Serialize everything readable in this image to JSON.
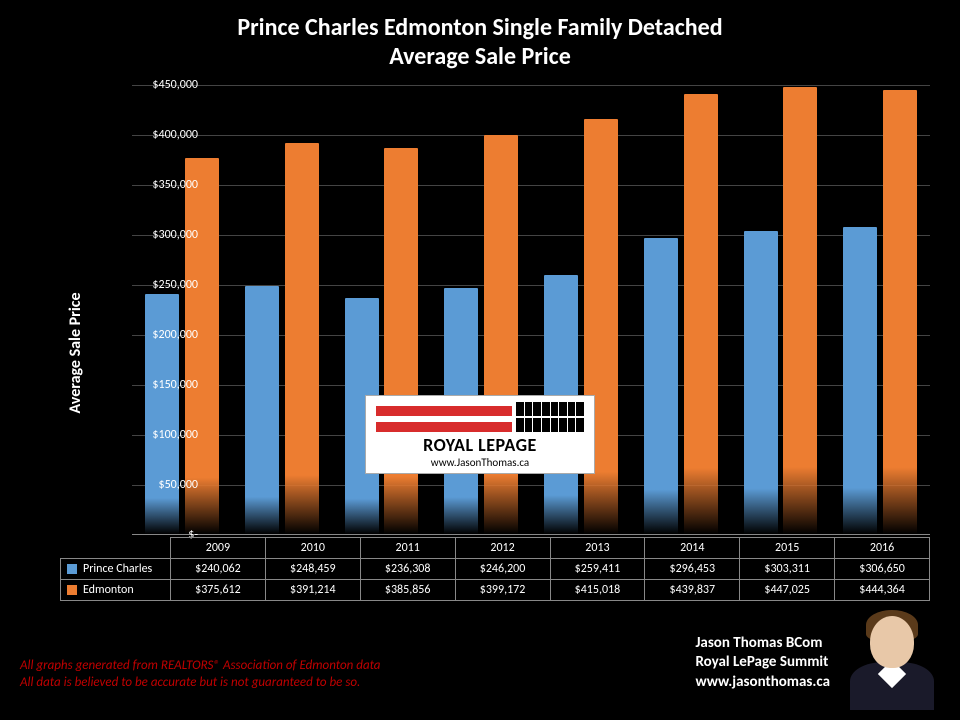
{
  "chart": {
    "title_line1": "Prince Charles Edmonton Single Family Detached",
    "title_line2": "Average Sale Price",
    "y_axis_label": "Average Sale Price",
    "type": "bar",
    "background_color": "#000000",
    "grid_color": "#444444",
    "text_color": "#ffffff",
    "title_fontsize": 24,
    "tick_fontsize": 12,
    "y_max": 450000,
    "y_min": 0,
    "y_tick_step": 50000,
    "y_ticks": [
      "$-",
      "$50,000",
      "$100,000",
      "$150,000",
      "$200,000",
      "$250,000",
      "$300,000",
      "$350,000",
      "$400,000",
      "$450,000"
    ],
    "years": [
      "2009",
      "2010",
      "2011",
      "2012",
      "2013",
      "2014",
      "2015",
      "2016"
    ],
    "series": [
      {
        "name": "Prince Charles",
        "color": "#5b9bd5",
        "values": [
          240062,
          248459,
          236308,
          246200,
          259411,
          296453,
          303311,
          306650
        ],
        "display": [
          "$240,062",
          "$248,459",
          "$236,308",
          "$246,200",
          "$259,411",
          "$296,453",
          "$303,311",
          "$306,650"
        ]
      },
      {
        "name": "Edmonton",
        "color": "#ed7d31",
        "values": [
          375612,
          391214,
          385856,
          399172,
          415018,
          439837,
          447025,
          444364
        ],
        "display": [
          "$375,612",
          "$391,214",
          "$385,856",
          "$399,172",
          "$415,018",
          "$439,837",
          "$447,025",
          "$444,364"
        ]
      }
    ]
  },
  "watermark": {
    "brand": "ROYAL LEPAGE",
    "url": "www.JasonThomas.ca",
    "accent_color": "#d82c2c"
  },
  "footer": {
    "disclaimer_line1": "All graphs generated from REALTORS® Association of Edmonton data",
    "disclaimer_line2": "All data is believed to be accurate but is not guaranteed to be so.",
    "disclaimer_color": "#c00000",
    "author_line1": "Jason Thomas BCom",
    "author_line2": "Royal LePage Summit",
    "author_line3": "www.jasonthomas.ca"
  }
}
